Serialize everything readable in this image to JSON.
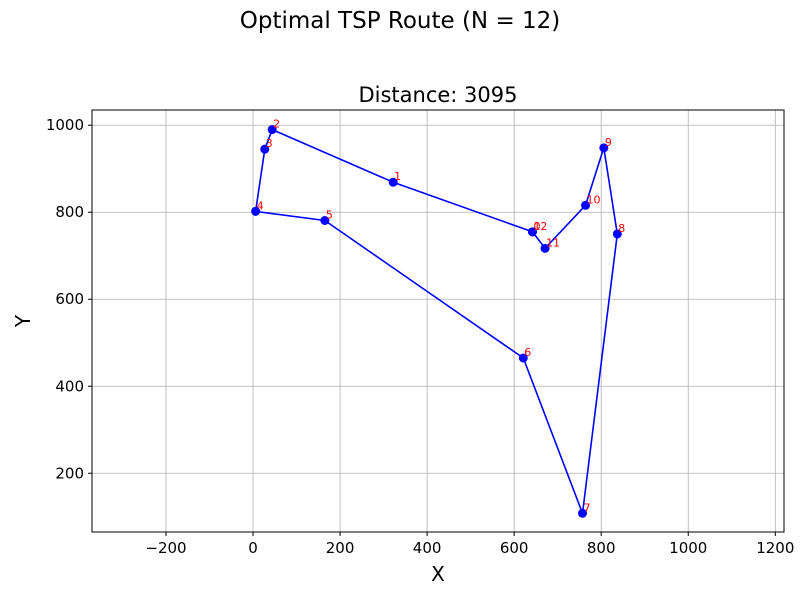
{
  "figure": {
    "suptitle": "Optimal TSP Route (N = 12)"
  },
  "chart_data": {
    "type": "line",
    "title": "Distance: 3095",
    "xlabel": "X",
    "ylabel": "Y",
    "xlim": [
      -370,
      1220
    ],
    "ylim": [
      65,
      1035
    ],
    "xticks": [
      -200,
      0,
      200,
      400,
      600,
      800,
      1000,
      1200
    ],
    "yticks": [
      200,
      400,
      600,
      800,
      1000
    ],
    "grid": true,
    "line_color": "#0000ff",
    "label_color": "#ff0000",
    "points": [
      {
        "label": "0",
        "x": 642,
        "y": 755
      },
      {
        "label": "1",
        "x": 322,
        "y": 869
      },
      {
        "label": "2",
        "x": 44,
        "y": 990
      },
      {
        "label": "3",
        "x": 27,
        "y": 945
      },
      {
        "label": "4",
        "x": 6,
        "y": 802
      },
      {
        "label": "5",
        "x": 165,
        "y": 781
      },
      {
        "label": "6",
        "x": 621,
        "y": 465
      },
      {
        "label": "7",
        "x": 757,
        "y": 108
      },
      {
        "label": "8",
        "x": 837,
        "y": 750
      },
      {
        "label": "9",
        "x": 806,
        "y": 948
      },
      {
        "label": "10",
        "x": 764,
        "y": 816
      },
      {
        "label": "11",
        "x": 671,
        "y": 717
      },
      {
        "label": "12",
        "x": 642,
        "y": 755
      }
    ]
  }
}
